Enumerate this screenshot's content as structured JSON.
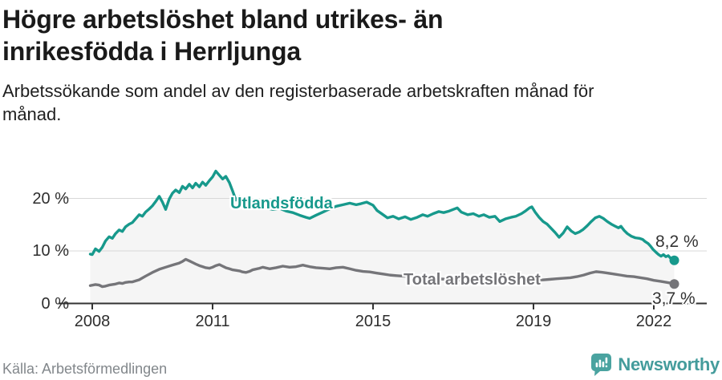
{
  "header": {
    "title": "Högre arbetslöshet bland utrikes- än inrikesfödda i Herrljunga",
    "subtitle": "Arbetssökande som andel av den registerbaserade arbetskraften månad för månad."
  },
  "footer": {
    "source": "Källa: Arbetsförmedlingen",
    "brand_name": "Newsworthy",
    "brand_icon": "newsworthy-speech-bubble-bar-chart-icon"
  },
  "colors": {
    "accent_teal": "#17998c",
    "line_gray": "#757579",
    "area_fill": "#f5f5f5",
    "gridline": "#d8d8d8",
    "axis": "#333333",
    "title_text": "#1a1a1a",
    "muted_text": "#82878b",
    "logo_teal": "#4aa3a0",
    "wordmark_teal": "#449c9c"
  },
  "chart_data": {
    "type": "line",
    "title": "Högre arbetslöshet bland utrikes- än inrikesfödda i Herrljunga",
    "subtitle": "Arbetssökande som andel av den registerbaserade arbetskraften månad för månad.",
    "unit": "%",
    "x_axis": {
      "range": [
        2007.95,
        2022.6
      ],
      "ticks": [
        {
          "value": 2008,
          "label": "2008"
        },
        {
          "value": 2011,
          "label": "2011"
        },
        {
          "value": 2015,
          "label": "2015"
        },
        {
          "value": 2019,
          "label": "2019"
        },
        {
          "value": 2022,
          "label": "2022"
        }
      ]
    },
    "y_axis": {
      "range": [
        0,
        26.5
      ],
      "gridlines": [
        10,
        20
      ],
      "ticks": [
        {
          "value": 0,
          "label": "0 %"
        },
        {
          "value": 10,
          "label": "10 %"
        },
        {
          "value": 20,
          "label": "20 %"
        }
      ]
    },
    "legend_position": "inline-labels",
    "series": [
      {
        "name": "Utlandsfödda",
        "label": "Utlandsfödda",
        "color": "#17998c",
        "area_fill": "#f5f5f5",
        "end_value": 8.2,
        "end_label": "8,2 %",
        "points": [
          [
            2007.95,
            9.4
          ],
          [
            2008.0,
            9.3
          ],
          [
            2008.08,
            10.4
          ],
          [
            2008.17,
            9.9
          ],
          [
            2008.25,
            10.7
          ],
          [
            2008.33,
            11.9
          ],
          [
            2008.42,
            12.7
          ],
          [
            2008.5,
            12.4
          ],
          [
            2008.58,
            13.3
          ],
          [
            2008.67,
            14.0
          ],
          [
            2008.75,
            13.7
          ],
          [
            2008.83,
            14.6
          ],
          [
            2008.92,
            15.1
          ],
          [
            2009.0,
            15.4
          ],
          [
            2009.08,
            16.1
          ],
          [
            2009.17,
            16.9
          ],
          [
            2009.25,
            16.6
          ],
          [
            2009.33,
            17.4
          ],
          [
            2009.42,
            18.0
          ],
          [
            2009.5,
            18.6
          ],
          [
            2009.58,
            19.4
          ],
          [
            2009.67,
            20.4
          ],
          [
            2009.75,
            19.3
          ],
          [
            2009.83,
            17.9
          ],
          [
            2009.92,
            19.9
          ],
          [
            2010.0,
            21.0
          ],
          [
            2010.08,
            21.6
          ],
          [
            2010.17,
            21.1
          ],
          [
            2010.25,
            22.3
          ],
          [
            2010.33,
            21.8
          ],
          [
            2010.42,
            22.7
          ],
          [
            2010.5,
            22.0
          ],
          [
            2010.58,
            22.9
          ],
          [
            2010.67,
            22.2
          ],
          [
            2010.75,
            23.1
          ],
          [
            2010.83,
            22.5
          ],
          [
            2010.92,
            23.4
          ],
          [
            2011.0,
            24.1
          ],
          [
            2011.08,
            25.2
          ],
          [
            2011.17,
            24.4
          ],
          [
            2011.25,
            23.7
          ],
          [
            2011.33,
            24.2
          ],
          [
            2011.42,
            23.0
          ],
          [
            2011.5,
            21.4
          ],
          [
            2011.58,
            19.7
          ],
          [
            2011.67,
            20.3
          ],
          [
            2011.75,
            19.7
          ],
          [
            2011.83,
            19.2
          ],
          [
            2011.92,
            18.9
          ],
          [
            2012.0,
            19.1
          ],
          [
            2012.17,
            18.6
          ],
          [
            2012.33,
            18.2
          ],
          [
            2012.5,
            17.9
          ],
          [
            2012.67,
            18.1
          ],
          [
            2012.83,
            17.6
          ],
          [
            2013.0,
            17.3
          ],
          [
            2013.17,
            16.8
          ],
          [
            2013.33,
            16.4
          ],
          [
            2013.42,
            16.2
          ],
          [
            2013.58,
            16.8
          ],
          [
            2013.75,
            17.4
          ],
          [
            2013.92,
            18.0
          ],
          [
            2014.08,
            18.5
          ],
          [
            2014.25,
            18.8
          ],
          [
            2014.42,
            19.1
          ],
          [
            2014.58,
            18.8
          ],
          [
            2014.7,
            19.0
          ],
          [
            2014.84,
            19.3
          ],
          [
            2015.0,
            18.7
          ],
          [
            2015.1,
            17.7
          ],
          [
            2015.25,
            16.9
          ],
          [
            2015.36,
            16.3
          ],
          [
            2015.5,
            16.6
          ],
          [
            2015.64,
            16.1
          ],
          [
            2015.8,
            16.5
          ],
          [
            2015.94,
            16.0
          ],
          [
            2016.1,
            16.4
          ],
          [
            2016.24,
            16.9
          ],
          [
            2016.36,
            16.6
          ],
          [
            2016.5,
            17.1
          ],
          [
            2016.64,
            17.5
          ],
          [
            2016.76,
            17.3
          ],
          [
            2016.9,
            17.6
          ],
          [
            2017.1,
            18.2
          ],
          [
            2017.2,
            17.4
          ],
          [
            2017.36,
            16.9
          ],
          [
            2017.5,
            17.1
          ],
          [
            2017.64,
            16.6
          ],
          [
            2017.76,
            16.9
          ],
          [
            2017.9,
            16.4
          ],
          [
            2018.04,
            16.6
          ],
          [
            2018.16,
            15.6
          ],
          [
            2018.3,
            16.1
          ],
          [
            2018.44,
            16.4
          ],
          [
            2018.56,
            16.6
          ],
          [
            2018.7,
            17.1
          ],
          [
            2018.8,
            17.6
          ],
          [
            2018.9,
            18.2
          ],
          [
            2018.96,
            18.4
          ],
          [
            2019.04,
            17.4
          ],
          [
            2019.14,
            16.4
          ],
          [
            2019.24,
            15.6
          ],
          [
            2019.34,
            15.1
          ],
          [
            2019.44,
            14.3
          ],
          [
            2019.54,
            13.5
          ],
          [
            2019.64,
            12.6
          ],
          [
            2019.74,
            13.4
          ],
          [
            2019.84,
            14.6
          ],
          [
            2019.94,
            13.8
          ],
          [
            2020.04,
            13.3
          ],
          [
            2020.14,
            13.6
          ],
          [
            2020.24,
            14.1
          ],
          [
            2020.34,
            14.8
          ],
          [
            2020.44,
            15.6
          ],
          [
            2020.54,
            16.3
          ],
          [
            2020.64,
            16.6
          ],
          [
            2020.74,
            16.2
          ],
          [
            2020.84,
            15.6
          ],
          [
            2020.94,
            15.1
          ],
          [
            2021.04,
            14.7
          ],
          [
            2021.12,
            14.4
          ],
          [
            2021.18,
            14.7
          ],
          [
            2021.26,
            13.9
          ],
          [
            2021.34,
            13.3
          ],
          [
            2021.44,
            12.8
          ],
          [
            2021.54,
            12.5
          ],
          [
            2021.64,
            12.4
          ],
          [
            2021.72,
            12.2
          ],
          [
            2021.78,
            11.8
          ],
          [
            2021.86,
            11.4
          ],
          [
            2021.92,
            10.9
          ],
          [
            2021.98,
            10.3
          ],
          [
            2022.06,
            9.7
          ],
          [
            2022.12,
            9.3
          ],
          [
            2022.18,
            9.0
          ],
          [
            2022.24,
            9.3
          ],
          [
            2022.3,
            8.9
          ],
          [
            2022.36,
            9.1
          ],
          [
            2022.42,
            8.6
          ],
          [
            2022.47,
            8.4
          ],
          [
            2022.51,
            8.2
          ]
        ]
      },
      {
        "name": "Total arbetslöshet",
        "label": "Total arbetslöshet",
        "color": "#757579",
        "end_value": 3.7,
        "end_label": "3,7 %",
        "points": [
          [
            2007.95,
            3.4
          ],
          [
            2008.08,
            3.6
          ],
          [
            2008.17,
            3.5
          ],
          [
            2008.25,
            3.2
          ],
          [
            2008.33,
            3.3
          ],
          [
            2008.42,
            3.5
          ],
          [
            2008.5,
            3.6
          ],
          [
            2008.58,
            3.7
          ],
          [
            2008.67,
            3.9
          ],
          [
            2008.75,
            3.8
          ],
          [
            2008.83,
            4.0
          ],
          [
            2008.92,
            4.1
          ],
          [
            2009.0,
            4.1
          ],
          [
            2009.17,
            4.5
          ],
          [
            2009.33,
            5.2
          ],
          [
            2009.5,
            5.9
          ],
          [
            2009.67,
            6.5
          ],
          [
            2009.83,
            6.9
          ],
          [
            2010.0,
            7.3
          ],
          [
            2010.17,
            7.7
          ],
          [
            2010.25,
            8.0
          ],
          [
            2010.33,
            8.4
          ],
          [
            2010.42,
            8.1
          ],
          [
            2010.5,
            7.8
          ],
          [
            2010.58,
            7.5
          ],
          [
            2010.67,
            7.2
          ],
          [
            2010.75,
            7.0
          ],
          [
            2010.83,
            6.8
          ],
          [
            2010.92,
            6.7
          ],
          [
            2011.0,
            6.9
          ],
          [
            2011.08,
            7.2
          ],
          [
            2011.17,
            7.4
          ],
          [
            2011.25,
            7.1
          ],
          [
            2011.33,
            6.8
          ],
          [
            2011.42,
            6.6
          ],
          [
            2011.5,
            6.4
          ],
          [
            2011.58,
            6.3
          ],
          [
            2011.67,
            6.2
          ],
          [
            2011.75,
            6.0
          ],
          [
            2011.83,
            5.9
          ],
          [
            2011.92,
            6.1
          ],
          [
            2012.0,
            6.4
          ],
          [
            2012.17,
            6.7
          ],
          [
            2012.25,
            6.9
          ],
          [
            2012.42,
            6.6
          ],
          [
            2012.58,
            6.8
          ],
          [
            2012.75,
            7.1
          ],
          [
            2012.92,
            6.9
          ],
          [
            2013.08,
            7.0
          ],
          [
            2013.25,
            7.3
          ],
          [
            2013.42,
            7.0
          ],
          [
            2013.58,
            6.8
          ],
          [
            2013.75,
            6.7
          ],
          [
            2013.92,
            6.6
          ],
          [
            2014.08,
            6.8
          ],
          [
            2014.25,
            6.9
          ],
          [
            2014.42,
            6.6
          ],
          [
            2014.58,
            6.3
          ],
          [
            2014.75,
            6.1
          ],
          [
            2014.92,
            6.0
          ],
          [
            2015.08,
            5.8
          ],
          [
            2015.25,
            5.6
          ],
          [
            2015.42,
            5.4
          ],
          [
            2015.58,
            5.3
          ],
          [
            2015.75,
            5.2
          ],
          [
            2015.92,
            5.1
          ],
          [
            2016.08,
            5.0
          ],
          [
            2016.33,
            4.8
          ],
          [
            2016.58,
            4.7
          ],
          [
            2016.83,
            4.6
          ],
          [
            2017.08,
            4.5
          ],
          [
            2017.33,
            4.4
          ],
          [
            2017.58,
            4.4
          ],
          [
            2017.83,
            4.3
          ],
          [
            2018.08,
            4.3
          ],
          [
            2018.33,
            4.2
          ],
          [
            2018.58,
            4.2
          ],
          [
            2018.83,
            4.3
          ],
          [
            2019.08,
            4.4
          ],
          [
            2019.25,
            4.5
          ],
          [
            2019.42,
            4.6
          ],
          [
            2019.58,
            4.7
          ],
          [
            2019.75,
            4.8
          ],
          [
            2019.92,
            4.9
          ],
          [
            2020.08,
            5.1
          ],
          [
            2020.25,
            5.4
          ],
          [
            2020.42,
            5.8
          ],
          [
            2020.56,
            6.05
          ],
          [
            2020.7,
            5.95
          ],
          [
            2020.84,
            5.8
          ],
          [
            2021.0,
            5.6
          ],
          [
            2021.17,
            5.4
          ],
          [
            2021.33,
            5.2
          ],
          [
            2021.5,
            5.1
          ],
          [
            2021.67,
            4.9
          ],
          [
            2021.83,
            4.7
          ],
          [
            2022.0,
            4.4
          ],
          [
            2022.17,
            4.2
          ],
          [
            2022.33,
            4.0
          ],
          [
            2022.44,
            3.85
          ],
          [
            2022.51,
            3.7
          ]
        ]
      }
    ]
  }
}
